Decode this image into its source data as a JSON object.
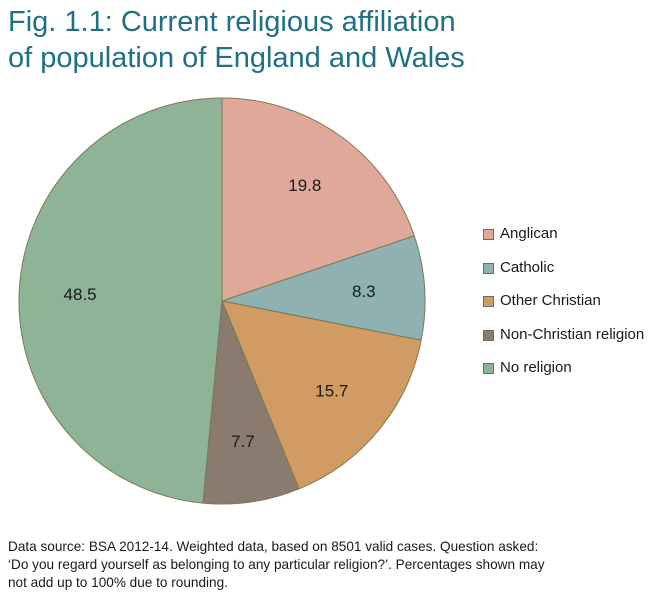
{
  "title": {
    "line1": "Fig. 1.1: Current religious affiliation",
    "line2": "of population of England and Wales"
  },
  "chart_data": {
    "type": "pie",
    "title": "Fig. 1.1: Current religious affiliation of population of England and Wales",
    "categories": [
      "Anglican",
      "Catholic",
      "Other Christian",
      "Non-Christian religion",
      "No religion"
    ],
    "values": [
      19.8,
      8.3,
      15.7,
      7.7,
      48.5
    ],
    "labels": [
      "19.8",
      "8.3",
      "15.7",
      "7.7",
      "48.5"
    ],
    "colors": [
      "#e0a899",
      "#8fb1b1",
      "#d19c63",
      "#8b7b6e",
      "#8eb396"
    ],
    "start_angle": "12 o'clock",
    "direction": "clockwise",
    "legend_placement": "right"
  },
  "footnote": {
    "line1": "Data source: BSA 2012-14. Weighted data, based on 8501 valid cases. Question asked:",
    "line2": "‘Do you regard yourself as belonging to any particular religion?’. Percentages shown may",
    "line3": "not add up to 100% due to rounding."
  }
}
